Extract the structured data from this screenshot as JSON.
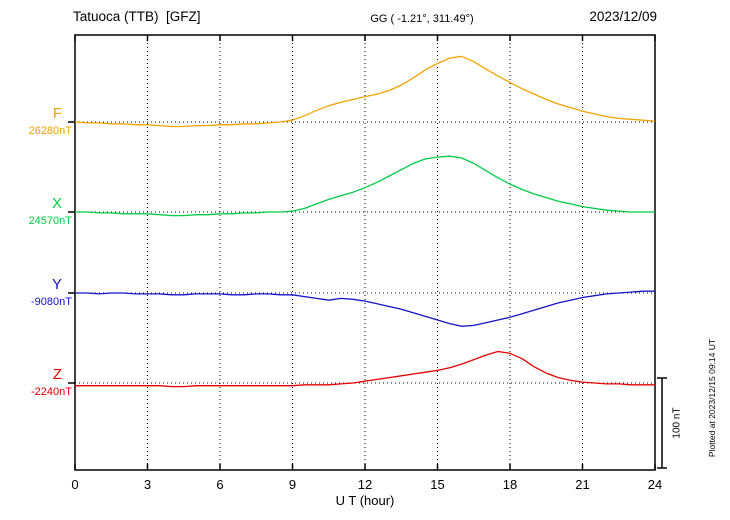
{
  "header": {
    "station": "Tatuoca (TTB)  [GFZ]",
    "coordinates": "GG ( -1.21°, 311.49°)",
    "date": "2023/12/09"
  },
  "axes": {
    "xlabel": "U T (hour)",
    "x_ticks": [
      0,
      3,
      6,
      9,
      12,
      15,
      18,
      21,
      24
    ],
    "x_range_hours": [
      0,
      24
    ]
  },
  "channels": [
    {
      "id": "F",
      "label": "F",
      "value_label": "26280nT",
      "color": "#f5a300"
    },
    {
      "id": "X",
      "label": "X",
      "value_label": "24570nT",
      "color": "#00cc44"
    },
    {
      "id": "Y",
      "label": "Y",
      "value_label": "-9080nT",
      "color": "#1313cc"
    },
    {
      "id": "Z",
      "label": "Z",
      "value_label": "-2240nT",
      "color": "#e60000"
    }
  ],
  "scale_bar": {
    "label": "100 nT",
    "nT": 100
  },
  "footer": {
    "plotted_note": "Plotted at 2023/12/15 09:14 UT"
  },
  "chart_data": {
    "type": "line",
    "title": "Tatuoca (TTB) [GFZ] magnetogram, 2023/12/09",
    "xlabel": "U T (hour)",
    "x_start_hour": 0,
    "x_step_hours": 0.5,
    "x_range_hours": [
      0,
      24
    ],
    "amplitude_scale_nT_per_division": 100,
    "grid": "dotted vertical every 3 h, dotted horizontal at each channel baseline",
    "series": [
      {
        "name": "F",
        "baseline_nT": 26280,
        "offsets_nT": [
          0,
          -1,
          -1,
          -2,
          -2,
          -3,
          -3,
          -4,
          -5,
          -5,
          -4,
          -4,
          -3,
          -3,
          -2,
          -2,
          -1,
          0,
          2,
          7,
          13,
          18,
          22,
          25,
          28,
          31,
          35,
          41,
          49,
          58,
          65,
          71,
          73,
          67,
          59,
          51,
          44,
          37,
          31,
          25,
          20,
          16,
          12,
          9,
          6,
          4,
          3,
          2,
          1
        ]
      },
      {
        "name": "X",
        "baseline_nT": 24570,
        "offsets_nT": [
          0,
          0,
          -1,
          -1,
          -2,
          -2,
          -2,
          -3,
          -4,
          -4,
          -3,
          -3,
          -2,
          -2,
          -1,
          -1,
          0,
          0,
          1,
          4,
          9,
          14,
          18,
          22,
          27,
          33,
          40,
          47,
          54,
          59,
          61,
          62,
          60,
          54,
          46,
          38,
          31,
          25,
          20,
          16,
          12,
          9,
          6,
          4,
          2,
          1,
          0,
          0,
          0
        ]
      },
      {
        "name": "Y",
        "baseline_nT": -9080,
        "offsets_nT": [
          0,
          0,
          -1,
          0,
          0,
          -1,
          -1,
          -1,
          -2,
          -2,
          -1,
          -1,
          -1,
          -2,
          -2,
          -1,
          -1,
          -2,
          -2,
          -4,
          -6,
          -8,
          -6,
          -7,
          -9,
          -12,
          -15,
          -18,
          -22,
          -26,
          -30,
          -34,
          -37,
          -36,
          -33,
          -30,
          -27,
          -23,
          -19,
          -15,
          -11,
          -8,
          -5,
          -3,
          -1,
          0,
          1,
          2,
          2
        ]
      },
      {
        "name": "Z",
        "baseline_nT": -2240,
        "offsets_nT": [
          -3,
          -3,
          -3,
          -3,
          -3,
          -3,
          -3,
          -3,
          -4,
          -4,
          -3,
          -3,
          -3,
          -3,
          -3,
          -3,
          -3,
          -3,
          -3,
          -2,
          -2,
          -2,
          -1,
          0,
          2,
          4,
          6,
          8,
          10,
          12,
          14,
          17,
          21,
          26,
          31,
          35,
          33,
          27,
          18,
          11,
          6,
          3,
          1,
          0,
          -1,
          -1,
          -2,
          -2,
          -2
        ]
      }
    ]
  }
}
